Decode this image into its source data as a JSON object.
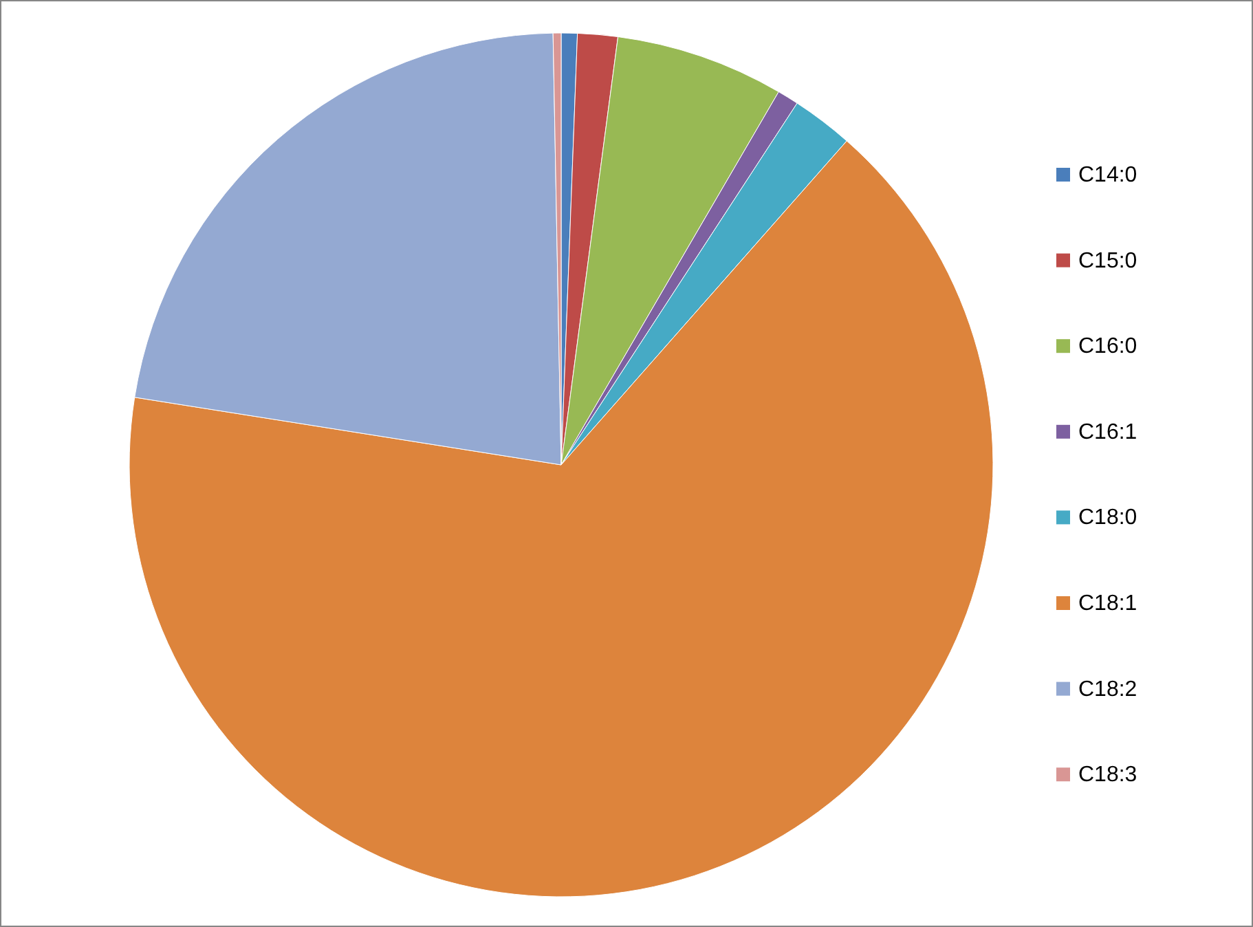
{
  "chart_data": {
    "type": "pie",
    "categories": [
      "C14:0",
      "C15:0",
      "C16:0",
      "C16:1",
      "C18:0",
      "C18:1",
      "C18:2",
      "C18:3"
    ],
    "values": [
      0.6,
      1.5,
      6.3,
      0.8,
      2.3,
      66.0,
      22.2,
      0.3
    ],
    "colors": [
      "#4a7ebb",
      "#be4b48",
      "#98b954",
      "#7d60a0",
      "#46aac5",
      "#dd843c",
      "#94a9d2",
      "#d99694"
    ],
    "legend": "right"
  }
}
